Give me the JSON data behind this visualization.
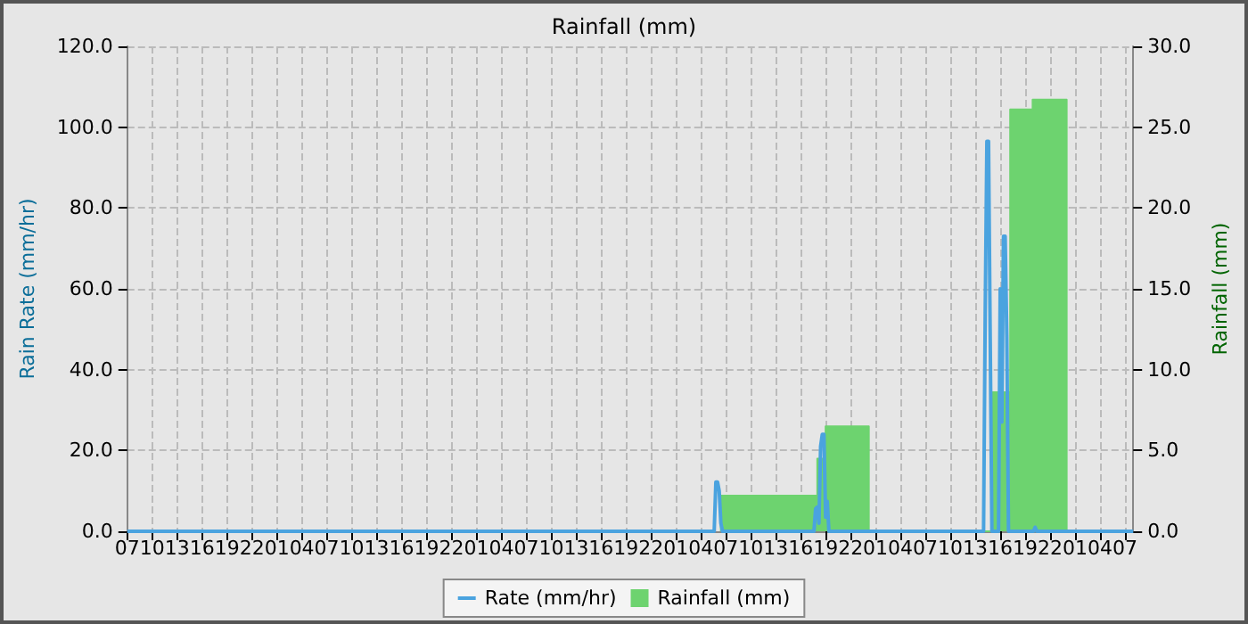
{
  "chart_data": {
    "type": "line",
    "title": "Rainfall (mm)",
    "ylabel": "Rain Rate (mm/hr)",
    "y2label": "Rainfall (mm)",
    "legend": "bottom",
    "grid": true,
    "marker": "none",
    "line_style": "solid",
    "xlim": [
      "--01-01T07:00",
      "--01-06T08:00"
    ],
    "xticks": [
      {
        "value": "--01-01T07:00",
        "label": "07"
      },
      {
        "value": "--01-01T10:00",
        "label": "10"
      },
      {
        "value": "--01-01T13:00",
        "label": "13"
      },
      {
        "value": "--01-01T16:00",
        "label": "16"
      },
      {
        "value": "--01-01T19:00",
        "label": "19"
      },
      {
        "value": "--01-01T22:00",
        "label": "22"
      },
      {
        "value": "--01-02T01:00",
        "label": "01"
      },
      {
        "value": "--01-02T04:00",
        "label": "04"
      },
      {
        "value": "--01-02T07:00",
        "label": "07"
      },
      {
        "value": "--01-02T10:00",
        "label": "10"
      },
      {
        "value": "--01-02T13:00",
        "label": "13"
      },
      {
        "value": "--01-02T16:00",
        "label": "16"
      },
      {
        "value": "--01-02T19:00",
        "label": "19"
      },
      {
        "value": "--01-02T22:00",
        "label": "22"
      },
      {
        "value": "--01-03T01:00",
        "label": "01"
      },
      {
        "value": "--01-03T04:00",
        "label": "04"
      },
      {
        "value": "--01-03T07:00",
        "label": "07"
      },
      {
        "value": "--01-03T10:00",
        "label": "10"
      },
      {
        "value": "--01-03T13:00",
        "label": "13"
      },
      {
        "value": "--01-03T16:00",
        "label": "16"
      },
      {
        "value": "--01-03T19:00",
        "label": "19"
      },
      {
        "value": "--01-03T22:00",
        "label": "22"
      },
      {
        "value": "--01-04T01:00",
        "label": "01"
      },
      {
        "value": "--01-04T04:00",
        "label": "04"
      },
      {
        "value": "--01-04T07:00",
        "label": "07"
      },
      {
        "value": "--01-04T10:00",
        "label": "10"
      },
      {
        "value": "--01-04T13:00",
        "label": "13"
      },
      {
        "value": "--01-04T16:00",
        "label": "16"
      },
      {
        "value": "--01-04T19:00",
        "label": "19"
      },
      {
        "value": "--01-04T22:00",
        "label": "22"
      },
      {
        "value": "--01-05T01:00",
        "label": "01"
      },
      {
        "value": "--01-05T04:00",
        "label": "04"
      },
      {
        "value": "--01-05T07:00",
        "label": "07"
      },
      {
        "value": "--01-05T10:00",
        "label": "10"
      },
      {
        "value": "--01-05T13:00",
        "label": "13"
      },
      {
        "value": "--01-05T16:00",
        "label": "16"
      },
      {
        "value": "--01-05T19:00",
        "label": "19"
      },
      {
        "value": "--01-05T22:00",
        "label": "22"
      },
      {
        "value": "--01-06T01:00",
        "label": "01"
      },
      {
        "value": "--01-06T04:00",
        "label": "04"
      },
      {
        "value": "--01-06T07:00",
        "label": "07"
      }
    ],
    "ylim": [
      0,
      120
    ],
    "yticks": [
      {
        "value": 0,
        "label": "0.0"
      },
      {
        "value": 20,
        "label": "20.0"
      },
      {
        "value": 40,
        "label": "40.0"
      },
      {
        "value": 60,
        "label": "60.0"
      },
      {
        "value": 80,
        "label": "80.0"
      },
      {
        "value": 100,
        "label": "100.0"
      },
      {
        "value": 120,
        "label": "120.0"
      }
    ],
    "y2lim": [
      0,
      30
    ],
    "y2ticks": [
      {
        "value": 0,
        "label": "0.0"
      },
      {
        "value": 5,
        "label": "5.0"
      },
      {
        "value": 10,
        "label": "10.0"
      },
      {
        "value": 15,
        "label": "15.0"
      },
      {
        "value": 20,
        "label": "20.0"
      },
      {
        "value": 25,
        "label": "25.0"
      },
      {
        "value": 30,
        "label": "30.0"
      }
    ],
    "series": [
      {
        "name": "Rainfall (mm)",
        "type": "area",
        "axis": "y2",
        "color": "#6dd36f",
        "x": [
          "--01-04T06:24",
          "--01-04T06:24",
          "--01-04T18:00",
          "--01-04T18:00",
          "--01-04T19:00",
          "--01-04T19:00",
          "--01-05T00:12",
          "--01-05T00:12",
          "--01-05T15:06",
          "--01-05T15:06",
          "--01-05T17:12",
          "--01-05T17:12",
          "--01-05T19:54",
          "--01-05T19:54",
          "--01-06T00:00",
          "--01-06T00:00"
        ],
        "values": [
          0,
          2.2,
          2.2,
          4.5,
          4.5,
          6.5,
          6.5,
          0,
          0,
          8.6,
          8.6,
          26.1,
          26.1,
          26.7,
          26.7,
          0
        ]
      },
      {
        "name": "Rate (mm/hr)",
        "color": "#4aa3df",
        "x": [
          "--01-01T07:00",
          "--01-04T05:36",
          "--01-04T05:48",
          "--01-04T06:00",
          "--01-04T06:12",
          "--01-04T06:24",
          "--01-04T06:36",
          "--01-04T17:36",
          "--01-04T17:48",
          "--01-04T18:00",
          "--01-04T18:12",
          "--01-04T18:24",
          "--01-04T18:36",
          "--01-04T18:48",
          "--01-04T19:00",
          "--01-04T19:12",
          "--01-04T19:24",
          "--01-05T14:00",
          "--01-05T14:12",
          "--01-05T14:24",
          "--01-05T14:36",
          "--01-05T14:48",
          "--01-05T15:00",
          "--01-05T15:48",
          "--01-05T16:00",
          "--01-05T16:12",
          "--01-05T16:24",
          "--01-05T16:36",
          "--01-05T16:48",
          "--01-05T17:00",
          "--01-05T20:00",
          "--01-05T20:12",
          "--01-05T20:24",
          "--01-06T08:00"
        ],
        "values": [
          0,
          0,
          12.2,
          12.2,
          10,
          2,
          0,
          0,
          5.6,
          6,
          2,
          21,
          24,
          24,
          3.5,
          7.4,
          0,
          0,
          54,
          96.5,
          96.5,
          48,
          0,
          0,
          60,
          27,
          73,
          73,
          48,
          0,
          0,
          1,
          0,
          0
        ]
      }
    ]
  }
}
